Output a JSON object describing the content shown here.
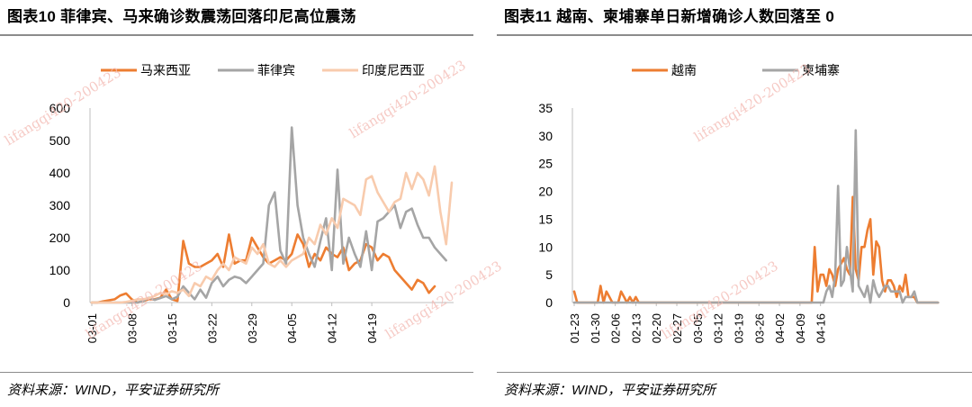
{
  "left": {
    "title": "图表10   菲律宾、马来确诊数震荡回落印尼高位震荡",
    "source": "资料来源：WIND，平安证券研究所"
  },
  "right": {
    "title": "图表11   越南、柬埔寨单日新增确诊人数回落至 0",
    "source": "资料来源：WIND，平安证券研究所"
  },
  "watermark": "lifangqi420-200423",
  "chart_data": [
    {
      "type": "line",
      "title": "菲律宾、马来确诊数震荡回落印尼高位震荡",
      "ylim": [
        0,
        600
      ],
      "yticks": [
        "0",
        "100",
        "200",
        "300",
        "400",
        "500",
        "600"
      ],
      "xticks": [
        "03-01",
        "03-08",
        "03-15",
        "03-22",
        "03-29",
        "04-05",
        "04-12",
        "04-19"
      ],
      "x_start": "03-01",
      "legend_position": "top",
      "series": [
        {
          "name": "马来西亚",
          "color": "#ed7d31",
          "values": [
            0,
            0,
            4,
            7,
            10,
            22,
            28,
            10,
            0,
            5,
            10,
            10,
            15,
            40,
            10,
            5,
            190,
            120,
            110,
            110,
            120,
            130,
            150,
            110,
            210,
            120,
            130,
            130,
            200,
            170,
            140,
            120,
            130,
            140,
            130,
            150,
            210,
            180,
            110,
            150,
            130,
            170,
            150,
            140,
            170,
            100,
            120,
            130,
            180,
            170,
            130,
            150,
            140,
            100,
            80,
            60,
            40,
            70,
            60,
            30,
            50
          ]
        },
        {
          "name": "菲律宾",
          "color": "#a5a5a5",
          "values": [
            0,
            0,
            0,
            0,
            0,
            0,
            0,
            0,
            0,
            5,
            15,
            8,
            14,
            20,
            10,
            18,
            50,
            30,
            10,
            40,
            15,
            60,
            80,
            50,
            70,
            80,
            75,
            60,
            80,
            100,
            120,
            300,
            340,
            160,
            120,
            540,
            300,
            200,
            150,
            110,
            190,
            260,
            100,
            410,
            120,
            200,
            150,
            110,
            220,
            100,
            250,
            260,
            280,
            300,
            230,
            280,
            290,
            240,
            200,
            200,
            170,
            150,
            130
          ]
        },
        {
          "name": "印度尼西亚",
          "color": "#f8cbad",
          "values": [
            0,
            0,
            0,
            0,
            0,
            0,
            2,
            5,
            10,
            10,
            14,
            20,
            30,
            25,
            35,
            30,
            40,
            20,
            60,
            50,
            80,
            70,
            100,
            120,
            100,
            140,
            130,
            120,
            170,
            150,
            180,
            120,
            110,
            130,
            110,
            130,
            140,
            150,
            200,
            180,
            240,
            210,
            260,
            230,
            320,
            310,
            300,
            270,
            380,
            390,
            340,
            310,
            280,
            310,
            320,
            400,
            350,
            400,
            380,
            330,
            420,
            280,
            180,
            370
          ]
        }
      ]
    },
    {
      "type": "line",
      "title": "越南、柬埔寨单日新增确诊人数回落至 0",
      "ylim": [
        0,
        35
      ],
      "yticks": [
        "0",
        "5",
        "10",
        "15",
        "20",
        "25",
        "30",
        "35"
      ],
      "xticks": [
        "01-23",
        "01-30",
        "02-06",
        "02-13",
        "02-20",
        "02-27",
        "03-05",
        "03-12",
        "03-19",
        "03-26",
        "04-02",
        "04-09",
        "04-16"
      ],
      "x_start": "01-23",
      "legend_position": "top",
      "series": [
        {
          "name": "越南",
          "color": "#ed7d31",
          "values": [
            2,
            0,
            0,
            0,
            0,
            0,
            0,
            0,
            0,
            3,
            0,
            2,
            1,
            0,
            0,
            0,
            2,
            1,
            0,
            1,
            0,
            1,
            0,
            0,
            0,
            0,
            0,
            0,
            0,
            0,
            0,
            0,
            0,
            0,
            0,
            0,
            0,
            0,
            0,
            0,
            0,
            0,
            0,
            0,
            0,
            0,
            0,
            0,
            0,
            0,
            0,
            0,
            0,
            0,
            0,
            0,
            0,
            0,
            0,
            0,
            0,
            0,
            0,
            0,
            0,
            0,
            0,
            0,
            0,
            0,
            0,
            0,
            0,
            0,
            0,
            0,
            0,
            0,
            0,
            0,
            0,
            0,
            10,
            2,
            5,
            5,
            3,
            6,
            5,
            3,
            6,
            7,
            8,
            6,
            5,
            19,
            6,
            4,
            10,
            10,
            13,
            15,
            5,
            11,
            10,
            4,
            2,
            4,
            4,
            3,
            1,
            3,
            2,
            5,
            1,
            1,
            1,
            0,
            0,
            0,
            0,
            0,
            0,
            0,
            0
          ]
        },
        {
          "name": "柬埔寨",
          "color": "#a5a5a5",
          "values": [
            0,
            0,
            0,
            0,
            0,
            0,
            0,
            0,
            0,
            0,
            0,
            0,
            0,
            0,
            0,
            0,
            0,
            0,
            0,
            0,
            0,
            0,
            0,
            0,
            0,
            0,
            0,
            0,
            0,
            0,
            0,
            0,
            0,
            0,
            0,
            0,
            0,
            0,
            0,
            0,
            0,
            0,
            0,
            0,
            0,
            0,
            0,
            0,
            0,
            0,
            0,
            0,
            0,
            0,
            0,
            0,
            0,
            0,
            0,
            0,
            0,
            0,
            0,
            0,
            0,
            0,
            0,
            0,
            0,
            0,
            0,
            0,
            0,
            0,
            0,
            0,
            0,
            0,
            0,
            0,
            0,
            0,
            0,
            0,
            0,
            0,
            2,
            3,
            1,
            5,
            21,
            3,
            4,
            10,
            6,
            2,
            31,
            3,
            2,
            1,
            3,
            0,
            4,
            2,
            1,
            2,
            3,
            3,
            2,
            2,
            2,
            2,
            0,
            1,
            1,
            1,
            2,
            0,
            0,
            0,
            0,
            0,
            0,
            0,
            0
          ]
        }
      ]
    }
  ]
}
